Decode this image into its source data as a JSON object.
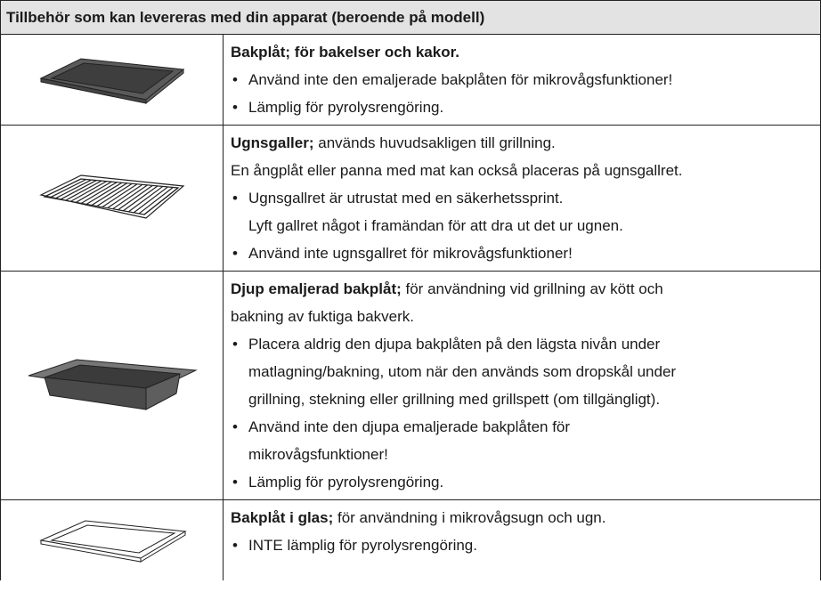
{
  "header": {
    "title": "Tillbehör som kan levereras med din apparat (beroende på modell)"
  },
  "rows": [
    {
      "lines": [
        {
          "bold": "Bakplåt; för bakelser och kakor."
        },
        {
          "text": "Använd inte den emaljerade bakplåten för mikrovågsfunktioner!",
          "style": "bullet"
        },
        {
          "text": "Lämplig för pyrolysrengöring.",
          "style": "bullet"
        }
      ]
    },
    {
      "lines": [
        {
          "bold": "Ugnsgaller;",
          "text": " används huvudsakligen till grillning."
        },
        {
          "text": "En ångplåt eller panna med mat kan också placeras på ugnsgallret."
        },
        {
          "text": "Ugnsgallret är utrustat med en säkerhetssprint.",
          "style": "bullet"
        },
        {
          "text": "Lyft gallret något i framändan för att dra ut det ur ugnen.",
          "style": "indent"
        },
        {
          "text": "Använd inte ugnsgallret för mikrovågsfunktioner!",
          "style": "bullet"
        }
      ]
    },
    {
      "lines": [
        {
          "bold": "Djup emaljerad bakplåt;",
          "text": " för användning vid grillning av kött och"
        },
        {
          "text": "bakning av fuktiga bakverk."
        },
        {
          "text": "Placera aldrig den djupa bakplåten på den lägsta nivån under",
          "style": "bullet"
        },
        {
          "text": "matlagning/bakning, utom när den används som dropskål under",
          "style": "indent"
        },
        {
          "text": "grillning, stekning eller grillning med grillspett (om tillgängligt).",
          "style": "indent"
        },
        {
          "text": "Använd inte den djupa emaljerade bakplåten för",
          "style": "bullet"
        },
        {
          "text": "mikrovågsfunktioner!",
          "style": "indent"
        },
        {
          "text": "Lämplig för pyrolysrengöring.",
          "style": "bullet"
        }
      ]
    },
    {
      "lines": [
        {
          "bold": "Bakplåt i glas;",
          "text": " för användning i mikrovågsugn och ugn."
        },
        {
          "text": "INTE lämplig för pyrolysrengöring.",
          "style": "bullet"
        }
      ]
    }
  ]
}
